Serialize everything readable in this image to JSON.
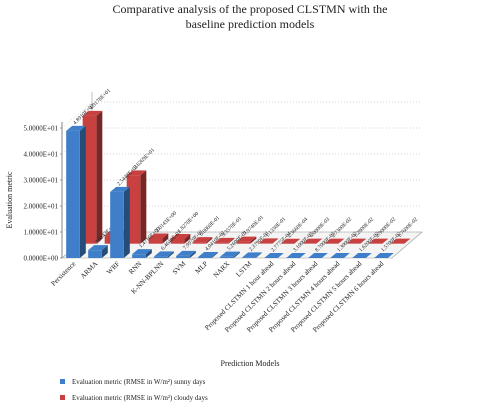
{
  "chart_data": {
    "type": "bar3d",
    "title": "Comparative analysis of the proposed CLSTMN with the baseline prediction models",
    "xlabel": "Prediction Models",
    "ylabel": "Evaluation metric",
    "categories": [
      "Persistence",
      "ARMA",
      "WRF",
      "RNN",
      "K-NN-BPLNN",
      "SVM",
      "MLP",
      "NARX",
      "LSTM",
      "Proposed CLSTMN 1 hour ahead",
      "Proposed CLSTMN 2 hours ahead",
      "Proposed CLSTMN 3 hours ahead",
      "Proposed CLSTMN 4 hours ahead",
      "Proposed CLSTMN 5 hours ahead",
      "Proposed CLSTMN 6 hours ahead"
    ],
    "series": [
      {
        "name": "Evaluation metric (RMSE in W/m²) sunny days",
        "color": "#3f7fc9",
        "values": [
          48.91,
          3.0143,
          25.448,
          1.4716,
          0.6464,
          0.7997,
          0.4041,
          0.526,
          0.2379,
          0.00027775,
          0.0031,
          0.0087,
          0.013,
          0.0162,
          0.0157
        ],
        "value_labels": [
          "4.8910E+01",
          "3.0143E+00",
          "2.5448E+01",
          "1.4716E+00",
          "6.4640E-01",
          "7.9970E-01",
          "4.0410E-01",
          "5.2600E-01",
          "2.3790E-01",
          "2.7775E-04",
          "3.1000E-03",
          "8.7000E-03",
          "1.3000E-02",
          "1.6200E-02",
          "1.5700E-02"
        ]
      },
      {
        "name": "Evaluation metric (RMSE in W/m²) cloudy days",
        "color": "#c94040",
        "values": [
          49.178,
          3.1354,
          26.269,
          2.0143,
          1.827,
          0.6006,
          0.3357,
          0.7974,
          0.1133,
          0.0002366,
          0.006,
          0.0273,
          0.0128,
          0.029,
          0.0176
        ],
        "value_labels": [
          "4.9178E+01",
          "3.1354E+00",
          "2.6269E+01",
          "2.0143E+00",
          "1.8270E+00",
          "6.0060E-01",
          "3.3570E-01",
          "7.9740E-01",
          "1.1330E-01",
          "2.3660E-04",
          "6.0000E-03",
          "2.7300E-02",
          "1.2800E-02",
          "2.9000E-02",
          "1.7600E-02"
        ]
      }
    ],
    "ylim": [
      0,
      50
    ],
    "yticks": [
      {
        "value": 0,
        "label": "0.0000E+00"
      },
      {
        "value": 10,
        "label": "1.0000E+01"
      },
      {
        "value": 20,
        "label": "2.0000E+01"
      },
      {
        "value": 30,
        "label": "3.0000E+01"
      },
      {
        "value": 40,
        "label": "4.0000E+01"
      },
      {
        "value": 50,
        "label": "5.0000E+01"
      }
    ],
    "grid": true
  }
}
